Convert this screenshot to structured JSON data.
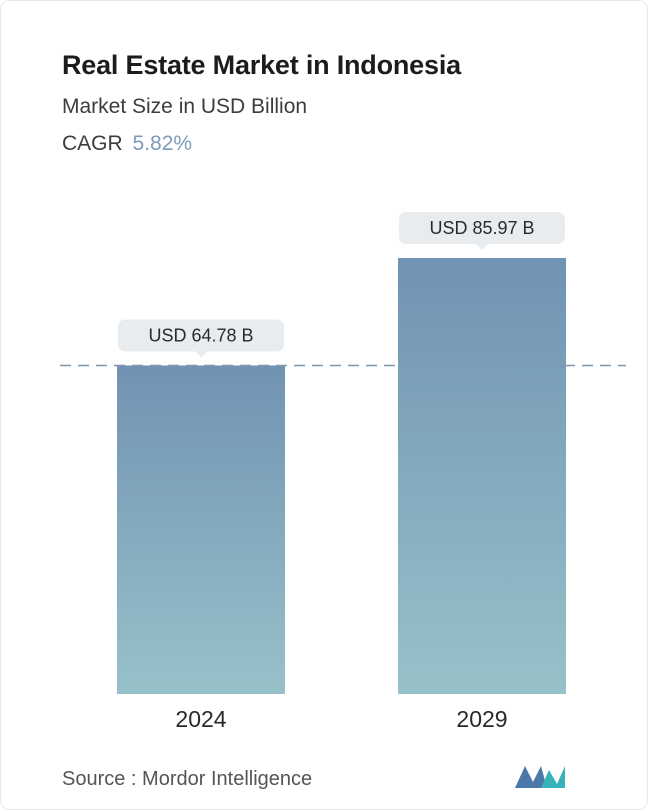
{
  "header": {
    "title": "Real Estate Market in Indonesia",
    "subtitle": "Market Size in USD Billion",
    "cagr_label": "CAGR",
    "cagr_value": "5.82%"
  },
  "chart_data": {
    "type": "bar",
    "categories": [
      "2024",
      "2029"
    ],
    "values": [
      64.78,
      85.97
    ],
    "value_labels": [
      "USD 64.78 B",
      "USD 85.97 B"
    ],
    "title": "Real Estate Market in Indonesia",
    "ylabel": "",
    "xlabel": "",
    "ylim": [
      0,
      85.97
    ],
    "grid": false,
    "reference_line": "dashed line at first bar value",
    "colors": {
      "bar_top": "#7193b3",
      "bar_bottom": "#97c1c9",
      "label_bg": "#e9ecef",
      "dash": "#7f97ad"
    }
  },
  "footer": {
    "source_label": "Source :",
    "source_name": "Mordor Intelligence",
    "logo_icon": "mordor-intelligence-logo"
  }
}
